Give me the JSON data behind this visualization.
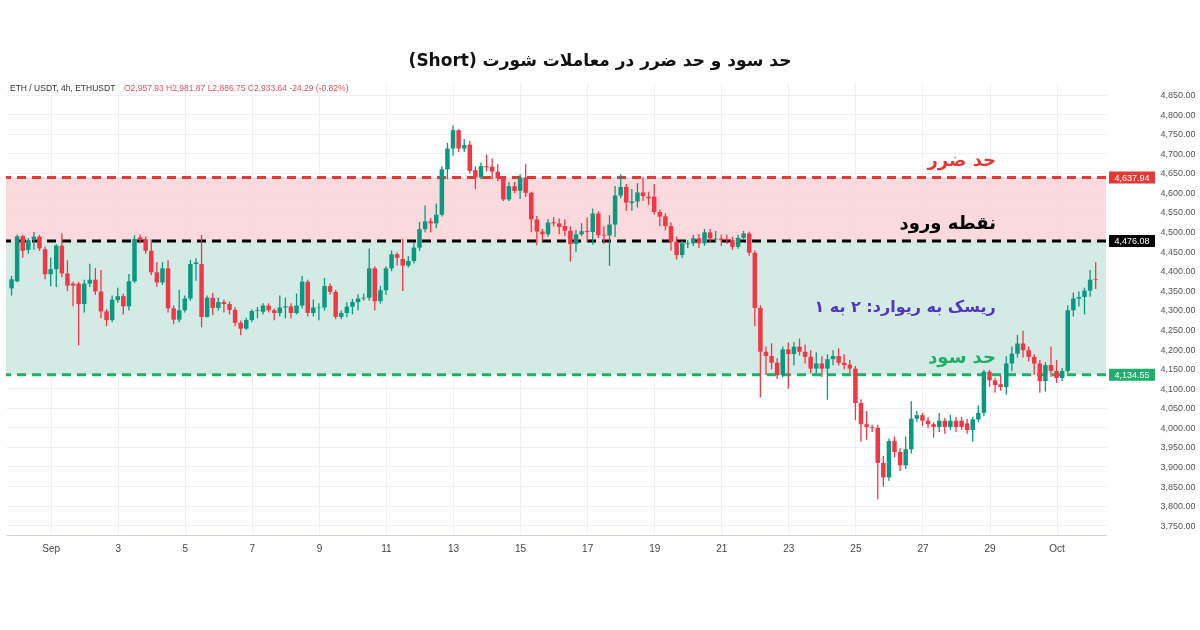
{
  "chart_data": {
    "type": "candlestick",
    "title": "حد سود و حد ضرر در معاملات شورت (Short)",
    "annotations": [
      "ETH / USDT, 4h, ETHUSDT",
      "O2,957.93 H2,981.87 L2,886.75 C2,933.64 -24.29 (-0.82%)",
      "ریسک به ریوارد: ۲ به ۱",
      "4,637.94",
      "4,476.08",
      "4,134.55"
    ],
    "x": [
      -0.1667,
      0,
      0.1667,
      0.3333,
      0.5,
      0.6667,
      0.8333,
      1,
      1.1667,
      1.3333,
      1.5,
      1.6667,
      1.8333,
      2,
      2.1667,
      2.3333,
      2.5,
      2.6667,
      2.8333,
      3,
      3.1667,
      3.3333,
      3.5,
      3.6667,
      3.8333,
      4,
      4.1667,
      4.3333,
      4.5,
      4.6667,
      4.8333,
      5,
      5.1667,
      5.3333,
      5.5,
      5.6667,
      5.8333,
      6,
      6.1667,
      6.3333,
      6.5,
      6.6667,
      6.8333,
      7,
      7.1667,
      7.3333,
      7.5,
      7.6667,
      7.8333,
      8,
      8.1667,
      8.3333,
      8.5,
      8.6667,
      8.8333,
      9,
      9.1667,
      9.3333,
      9.5,
      9.6667,
      9.8333,
      10,
      10.1667,
      10.3333,
      10.5,
      10.6667,
      10.8333,
      11,
      11.1667,
      11.3333,
      11.5,
      11.6667,
      11.8333,
      12,
      12.1667,
      12.3333,
      12.5,
      12.6667,
      12.8333,
      13,
      13.1667,
      13.3333,
      13.5,
      13.6667,
      13.8333,
      14,
      14.1667,
      14.3333,
      14.5,
      14.6667,
      14.8333,
      15,
      15.1667,
      15.3333,
      15.5,
      15.6667,
      15.8333,
      16,
      16.1667,
      16.3333,
      16.5,
      16.6667,
      16.8333,
      17,
      17.1667,
      17.3333,
      17.5,
      17.6667,
      17.8333,
      18,
      18.1667,
      18.3333,
      18.5,
      18.6667,
      18.8333,
      19,
      19.1667,
      19.3333,
      19.5,
      19.6667,
      19.8333,
      20,
      20.1667,
      20.3333,
      20.5,
      20.6667,
      20.8333,
      21,
      21.1667,
      21.3333,
      21.5,
      21.6667,
      21.8333,
      22,
      22.1667,
      22.3333,
      22.5,
      22.6667,
      22.8333,
      23,
      23.1667,
      23.3333,
      23.5,
      23.6667,
      23.8333,
      24,
      24.1667,
      24.3333,
      24.5,
      24.6667,
      24.8333,
      25,
      25.1667,
      25.3333,
      25.5,
      25.6667,
      25.8333,
      26,
      26.1667,
      26.3333,
      26.5,
      26.6667,
      26.8333,
      27,
      27.1667,
      27.3333,
      27.5,
      27.6667,
      27.8333,
      28,
      28.1667,
      28.3333,
      28.5,
      28.6667,
      28.8333,
      29,
      29.1667,
      29.3333,
      29.5,
      29.6667,
      29.8333,
      30,
      30.1667,
      30.3333,
      30.5,
      30.6667,
      30.8333,
      31,
      31.1667,
      31.3333,
      31.5,
      31.6667,
      31.8333,
      32,
      32.1667
    ],
    "ohlc": [
      [
        4355,
        4385,
        4338,
        4378
      ],
      [
        4373,
        4491,
        4372,
        4488
      ],
      [
        4488,
        4490,
        4435,
        4451
      ],
      [
        4453,
        4482,
        4445,
        4478
      ],
      [
        4480,
        4497,
        4455,
        4487
      ],
      [
        4487,
        4490,
        4452,
        4457
      ],
      [
        4455,
        4460,
        4380,
        4391
      ],
      [
        4391,
        4432,
        4362,
        4404
      ],
      [
        4404,
        4466,
        4360,
        4464
      ],
      [
        4464,
        4494,
        4385,
        4393
      ],
      [
        4393,
        4425,
        4350,
        4362
      ],
      [
        4367,
        4370,
        4311,
        4362
      ],
      [
        4367,
        4370,
        4211,
        4315
      ],
      [
        4315,
        4375,
        4295,
        4367
      ],
      [
        4367,
        4416,
        4360,
        4377
      ],
      [
        4377,
        4405,
        4340,
        4347
      ],
      [
        4347,
        4400,
        4280,
        4296
      ],
      [
        4296,
        4300,
        4260,
        4274
      ],
      [
        4274,
        4335,
        4270,
        4326
      ],
      [
        4325,
        4355,
        4320,
        4335
      ],
      [
        4335,
        4340,
        4290,
        4309
      ],
      [
        4309,
        4390,
        4300,
        4373
      ],
      [
        4373,
        4489,
        4370,
        4481
      ],
      [
        4485,
        4490,
        4472,
        4480
      ],
      [
        4480,
        4486,
        4445,
        4451
      ],
      [
        4451,
        4478,
        4390,
        4396
      ],
      [
        4396,
        4420,
        4360,
        4370
      ],
      [
        4370,
        4420,
        4365,
        4406
      ],
      [
        4406,
        4425,
        4295,
        4304
      ],
      [
        4304,
        4310,
        4265,
        4275
      ],
      [
        4275,
        4350,
        4270,
        4299
      ],
      [
        4299,
        4335,
        4295,
        4329
      ],
      [
        4329,
        4426,
        4325,
        4417
      ],
      [
        4417,
        4430,
        4376,
        4421
      ],
      [
        4417,
        4490,
        4257,
        4282
      ],
      [
        4282,
        4335,
        4282,
        4331
      ],
      [
        4331,
        4342,
        4288,
        4305
      ],
      [
        4305,
        4330,
        4300,
        4320
      ],
      [
        4320,
        4325,
        4295,
        4315
      ],
      [
        4315,
        4320,
        4290,
        4300
      ],
      [
        4300,
        4305,
        4260,
        4267
      ],
      [
        4267,
        4271,
        4237,
        4252
      ],
      [
        4252,
        4278,
        4250,
        4274
      ],
      [
        4274,
        4300,
        4270,
        4297
      ],
      [
        4297,
        4306,
        4280,
        4299
      ],
      [
        4295,
        4315,
        4290,
        4311
      ],
      [
        4311,
        4315,
        4295,
        4299
      ],
      [
        4299,
        4302,
        4275,
        4292
      ],
      [
        4292,
        4335,
        4285,
        4306
      ],
      [
        4306,
        4330,
        4280,
        4309
      ],
      [
        4309,
        4315,
        4280,
        4292
      ],
      [
        4292,
        4340,
        4290,
        4311
      ],
      [
        4311,
        4385,
        4305,
        4372
      ],
      [
        4372,
        4375,
        4285,
        4292
      ],
      [
        4292,
        4325,
        4285,
        4306
      ],
      [
        4305,
        4315,
        4275,
        4306
      ],
      [
        4306,
        4380,
        4300,
        4361
      ],
      [
        4361,
        4366,
        4340,
        4346
      ],
      [
        4346,
        4350,
        4278,
        4282
      ],
      [
        4282,
        4297,
        4278,
        4292
      ],
      [
        4292,
        4318,
        4283,
        4308
      ],
      [
        4308,
        4326,
        4290,
        4320
      ],
      [
        4320,
        4338,
        4300,
        4329
      ],
      [
        4329,
        4340,
        4325,
        4331
      ],
      [
        4331,
        4455,
        4325,
        4406
      ],
      [
        4406,
        4410,
        4300,
        4322
      ],
      [
        4322,
        4360,
        4318,
        4350
      ],
      [
        4350,
        4410,
        4340,
        4406
      ],
      [
        4406,
        4450,
        4400,
        4442
      ],
      [
        4442,
        4445,
        4415,
        4433
      ],
      [
        4430,
        4480,
        4350,
        4413
      ],
      [
        4413,
        4435,
        4410,
        4425
      ],
      [
        4425,
        4470,
        4420,
        4459
      ],
      [
        4459,
        4523,
        4452,
        4506
      ],
      [
        4506,
        4565,
        4500,
        4526
      ],
      [
        4526,
        4533,
        4500,
        4521
      ],
      [
        4521,
        4570,
        4510,
        4543
      ],
      [
        4543,
        4665,
        4540,
        4659
      ],
      [
        4659,
        4725,
        4635,
        4712
      ],
      [
        4712,
        4770,
        4695,
        4759
      ],
      [
        4759,
        4760,
        4705,
        4712
      ],
      [
        4712,
        4735,
        4705,
        4721
      ],
      [
        4722,
        4730,
        4650,
        4655
      ],
      [
        4657,
        4665,
        4610,
        4638
      ],
      [
        4638,
        4675,
        4635,
        4667
      ],
      [
        4667,
        4695,
        4655,
        4664
      ],
      [
        4666,
        4685,
        4635,
        4653
      ],
      [
        4653,
        4670,
        4630,
        4636
      ],
      [
        4636,
        4640,
        4580,
        4582
      ],
      [
        4582,
        4625,
        4580,
        4616
      ],
      [
        4616,
        4625,
        4600,
        4604
      ],
      [
        4604,
        4645,
        4585,
        4638
      ],
      [
        4638,
        4670,
        4590,
        4599
      ],
      [
        4599,
        4600,
        4500,
        4531
      ],
      [
        4531,
        4538,
        4467,
        4500
      ],
      [
        4500,
        4505,
        4478,
        4493
      ],
      [
        4493,
        4530,
        4488,
        4523
      ],
      [
        4524,
        4535,
        4515,
        4521
      ],
      [
        4521,
        4532,
        4495,
        4512
      ],
      [
        4514,
        4530,
        4490,
        4502
      ],
      [
        4502,
        4512,
        4425,
        4468
      ],
      [
        4468,
        4503,
        4450,
        4493
      ],
      [
        4493,
        4520,
        4490,
        4501
      ],
      [
        4502,
        4535,
        4475,
        4499
      ],
      [
        4499,
        4557,
        4468,
        4546
      ],
      [
        4546,
        4550,
        4485,
        4491
      ],
      [
        4492,
        4512,
        4470,
        4490
      ],
      [
        4490,
        4540,
        4414,
        4518
      ],
      [
        4518,
        4615,
        4488,
        4592
      ],
      [
        4592,
        4645,
        4587,
        4614
      ],
      [
        4614,
        4620,
        4555,
        4574
      ],
      [
        4573,
        4607,
        4555,
        4577
      ],
      [
        4577,
        4622,
        4563,
        4600
      ],
      [
        4600,
        4637,
        4580,
        4591
      ],
      [
        4589,
        4600,
        4570,
        4585
      ],
      [
        4589,
        4620,
        4545,
        4550
      ],
      [
        4550,
        4555,
        4515,
        4538
      ],
      [
        4539,
        4545,
        4505,
        4514
      ],
      [
        4514,
        4522,
        4453,
        4474
      ],
      [
        4474,
        4485,
        4430,
        4440
      ],
      [
        4440,
        4475,
        4435,
        4470
      ],
      [
        4468,
        4477,
        4460,
        4470
      ],
      [
        4470,
        4490,
        4465,
        4483
      ],
      [
        4483,
        4492,
        4460,
        4470
      ],
      [
        4470,
        4505,
        4465,
        4498
      ],
      [
        4498,
        4505,
        4475,
        4483
      ],
      [
        4480,
        4500,
        4475,
        4482
      ],
      [
        4482,
        4490,
        4465,
        4478
      ],
      [
        4481,
        4490,
        4470,
        4478
      ],
      [
        4478,
        4485,
        4455,
        4461
      ],
      [
        4461,
        4490,
        4458,
        4484
      ],
      [
        4484,
        4500,
        4480,
        4495
      ],
      [
        4495,
        4498,
        4440,
        4446
      ],
      [
        4446,
        4450,
        4260,
        4305
      ],
      [
        4305,
        4310,
        4078,
        4193
      ],
      [
        4193,
        4205,
        4135,
        4182
      ],
      [
        4182,
        4213,
        4150,
        4165
      ],
      [
        4165,
        4175,
        4125,
        4133
      ],
      [
        4133,
        4205,
        4130,
        4199
      ],
      [
        4199,
        4215,
        4100,
        4187
      ],
      [
        4187,
        4216,
        4160,
        4206
      ],
      [
        4206,
        4225,
        4185,
        4193
      ],
      [
        4193,
        4210,
        4165,
        4180
      ],
      [
        4180,
        4195,
        4140,
        4150
      ],
      [
        4150,
        4190,
        4140,
        4163
      ],
      [
        4163,
        4180,
        4130,
        4150
      ],
      [
        4150,
        4185,
        4072,
        4174
      ],
      [
        4174,
        4195,
        4160,
        4182
      ],
      [
        4182,
        4200,
        4160,
        4165
      ],
      [
        4165,
        4185,
        4150,
        4159
      ],
      [
        4160,
        4170,
        4140,
        4150
      ],
      [
        4150,
        4155,
        4020,
        4062
      ],
      [
        4062,
        4070,
        3965,
        4008
      ],
      [
        4008,
        4040,
        3970,
        4001
      ],
      [
        4001,
        4005,
        3990,
        3999
      ],
      [
        3999,
        4005,
        3818,
        3909
      ],
      [
        3909,
        3925,
        3850,
        3872
      ],
      [
        3872,
        3970,
        3865,
        3965
      ],
      [
        3965,
        3975,
        3925,
        3937
      ],
      [
        3937,
        3945,
        3890,
        3903
      ],
      [
        3903,
        3975,
        3895,
        3944
      ],
      [
        3944,
        4065,
        3935,
        4022
      ],
      [
        4022,
        4040,
        4015,
        4031
      ],
      [
        4031,
        4035,
        4005,
        4017
      ],
      [
        4017,
        4025,
        4000,
        4008
      ],
      [
        4008,
        4012,
        3975,
        4001
      ],
      [
        4001,
        4035,
        3990,
        4017
      ],
      [
        4017,
        4022,
        3985,
        4001
      ],
      [
        4001,
        4030,
        3995,
        4017
      ],
      [
        4017,
        4025,
        3990,
        4001
      ],
      [
        4017,
        4025,
        3995,
        4001
      ],
      [
        4010,
        4020,
        3985,
        3993
      ],
      [
        3993,
        4025,
        3965,
        4020
      ],
      [
        4020,
        4055,
        4015,
        4037
      ],
      [
        4037,
        4145,
        4030,
        4142
      ],
      [
        4142,
        4145,
        4105,
        4120
      ],
      [
        4120,
        4125,
        4090,
        4108
      ],
      [
        4110,
        4130,
        4095,
        4103
      ],
      [
        4103,
        4180,
        4085,
        4163
      ],
      [
        4163,
        4205,
        4145,
        4188
      ],
      [
        4188,
        4235,
        4180,
        4214
      ],
      [
        4214,
        4245,
        4180,
        4197
      ],
      [
        4197,
        4205,
        4170,
        4180
      ],
      [
        4180,
        4185,
        4135,
        4163
      ],
      [
        4163,
        4170,
        4090,
        4118
      ],
      [
        4118,
        4165,
        4093,
        4159
      ],
      [
        4159,
        4205,
        4130,
        4144
      ],
      [
        4144,
        4170,
        4115,
        4126
      ],
      [
        4126,
        4150,
        4120,
        4144
      ],
      [
        4144,
        4310,
        4140,
        4299
      ],
      [
        4299,
        4343,
        4285,
        4329
      ],
      [
        4329,
        4345,
        4310,
        4333
      ],
      [
        4333,
        4355,
        4290,
        4349
      ],
      [
        4349,
        4400,
        4335,
        4377
      ],
      [
        4378,
        4420,
        4355,
        4376
      ]
    ],
    "xlim": [
      -0.1833,
      32.325
    ],
    "xticks": [
      {
        "value": 1,
        "label": "Sep"
      },
      3,
      5,
      7,
      9,
      11,
      13,
      15,
      17,
      19,
      21,
      23,
      25,
      27,
      29,
      {
        "value": 31,
        "label": "Oct"
      }
    ],
    "ylim": [
      3725,
      4882
    ],
    "yticks": [
      {
        "value": 3750,
        "label": "3,750.00"
      },
      {
        "value": 3800,
        "label": "3,800.00"
      },
      {
        "value": 3850,
        "label": "3,850.00"
      },
      {
        "value": 3900,
        "label": "3,900.00"
      },
      {
        "value": 3950,
        "label": "3,950.00"
      },
      {
        "value": 4000,
        "label": "4,000.00"
      },
      {
        "value": 4050,
        "label": "4,050.00"
      },
      {
        "value": 4100,
        "label": "4,100.00"
      },
      {
        "value": 4150,
        "label": "4,150.00"
      },
      {
        "value": 4200,
        "label": "4,200.00"
      },
      {
        "value": 4250,
        "label": "4,250.00"
      },
      {
        "value": 4300,
        "label": "4,300.00"
      },
      {
        "value": 4350,
        "label": "4,350.00"
      },
      {
        "value": 4400,
        "label": "4,400.00"
      },
      {
        "value": 4450,
        "label": "4,450.00"
      },
      {
        "value": 4500,
        "label": "4,500.00"
      },
      {
        "value": 4550,
        "label": "4,550.00"
      },
      {
        "value": 4600,
        "label": "4,600.00"
      },
      {
        "value": 4650,
        "label": "4,650.00"
      },
      {
        "value": 4700,
        "label": "4,700.00"
      },
      {
        "value": 4750,
        "label": "4,750.00"
      },
      {
        "value": 4800,
        "label": "4,800.00"
      },
      {
        "value": 4850,
        "label": "4,850.00"
      }
    ],
    "grid": true,
    "ref_lines": [
      {
        "axis": "y",
        "value": 4637.94,
        "label": "حد ضرر",
        "color": "#e53935",
        "line_style": "dashed"
      },
      {
        "axis": "y",
        "value": 4476.08,
        "label": "نقطه ورود",
        "color": "#000000",
        "line_style": "dashed"
      },
      {
        "axis": "y",
        "value": 4134.55,
        "label": "حد سود",
        "color": "#1fae6b",
        "line_style": "dashed"
      }
    ],
    "bands": [
      {
        "axis": "y",
        "from": 4476.08,
        "to": 4637.94,
        "color": "#f9d3d6"
      },
      {
        "axis": "y",
        "from": 4134.55,
        "to": 4476.08,
        "color": "#cde8e1"
      }
    ]
  }
}
